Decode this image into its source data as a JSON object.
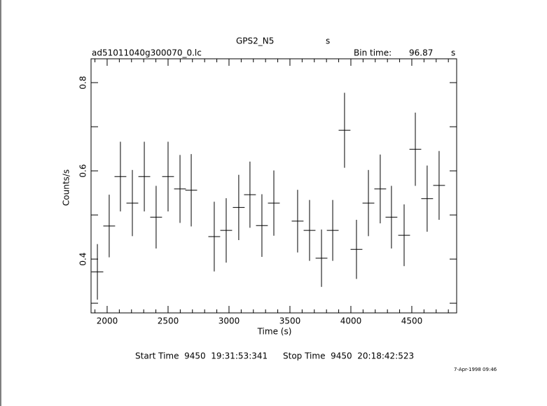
{
  "chart_data": {
    "type": "errorbar",
    "title": "GPS2_N5",
    "title_unit": "s",
    "subtitle": "ad51011040g300070_0.lc",
    "bin_time_label": "Bin time:",
    "bin_time": 96.87,
    "bin_time_unit": "s",
    "x_label": "Time (s)",
    "y_label": "Counts/s",
    "start_time": "Start Time  9450  19:31:53:341",
    "stop_time": "Stop Time  9450  20:18:42:523",
    "timestamp": "7-Apr-1998 09:46",
    "color": "#000000",
    "x": [
      1920,
      2017,
      2109,
      2207,
      2305,
      2402,
      2500,
      2598,
      2690,
      2879,
      2977,
      3080,
      3172,
      3270,
      3368,
      3563,
      3661,
      3759,
      3851,
      3948,
      4046,
      4144,
      4241,
      4333,
      4437,
      4529,
      4626,
      4724
    ],
    "values": [
      0.371,
      0.475,
      0.587,
      0.527,
      0.587,
      0.495,
      0.587,
      0.559,
      0.556,
      0.451,
      0.465,
      0.517,
      0.546,
      0.476,
      0.527,
      0.486,
      0.465,
      0.402,
      0.465,
      0.692,
      0.422,
      0.527,
      0.559,
      0.495,
      0.454,
      0.649,
      0.537,
      0.567
    ],
    "errors": [
      0.063,
      0.071,
      0.079,
      0.075,
      0.079,
      0.071,
      0.079,
      0.077,
      0.082,
      0.079,
      0.073,
      0.074,
      0.075,
      0.071,
      0.074,
      0.071,
      0.069,
      0.065,
      0.069,
      0.085,
      0.067,
      0.075,
      0.078,
      0.071,
      0.07,
      0.083,
      0.075,
      0.078
    ],
    "xlim": [
      1868,
      4868
    ],
    "ylim": [
      0.278,
      0.854
    ],
    "xticks": [
      2000,
      2500,
      3000,
      3500,
      4000,
      4500
    ],
    "xticks_minor": [
      1900,
      2100,
      2200,
      2300,
      2400,
      2600,
      2700,
      2800,
      2900,
      3100,
      3200,
      3300,
      3400,
      3600,
      3700,
      3800,
      3900,
      4100,
      4200,
      4300,
      4400,
      4600,
      4700,
      4800
    ],
    "yticks": [
      0.4,
      0.6,
      0.8
    ],
    "yticks_minor": [
      0.3,
      0.5,
      0.7
    ]
  }
}
